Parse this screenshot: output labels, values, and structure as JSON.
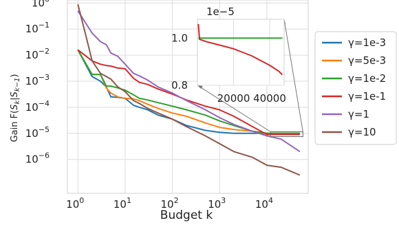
{
  "chart_data": [
    {
      "type": "line",
      "xlabel": "Budget k",
      "ylabel": "Gain F(S_k|S_{k-1})",
      "xscale": "log",
      "yscale": "log",
      "xlim": [
        0.6,
        75000
      ],
      "ylim": [
        5e-08,
        1.3
      ],
      "xticks": [
        {
          "value": 1,
          "base": "10",
          "exp": "0"
        },
        {
          "value": 10,
          "base": "10",
          "exp": "1"
        },
        {
          "value": 100,
          "base": "10",
          "exp": "2"
        },
        {
          "value": 1000,
          "base": "10",
          "exp": "3"
        },
        {
          "value": 10000,
          "base": "10",
          "exp": "4"
        }
      ],
      "yticks": [
        {
          "value": 1e-06,
          "base": "10",
          "exp": "−6"
        },
        {
          "value": 1e-05,
          "base": "10",
          "exp": "−5"
        },
        {
          "value": 0.0001,
          "base": "10",
          "exp": "−4"
        },
        {
          "value": 0.001,
          "base": "10",
          "exp": "−3"
        },
        {
          "value": 0.01,
          "base": "10",
          "exp": "−2"
        },
        {
          "value": 0.1,
          "base": "10",
          "exp": "−1"
        },
        {
          "value": 1,
          "base": "10",
          "exp": "0"
        }
      ],
      "grid": true,
      "legend": "outside-right",
      "series": [
        {
          "name": "γ=1e-3",
          "color": "#1f77b4",
          "x": [
            1,
            2,
            3,
            4,
            5,
            7,
            10,
            15,
            20,
            30,
            50,
            100,
            200,
            500,
            1000,
            2000,
            5000,
            10000,
            20000,
            50000
          ],
          "y": [
            0.016,
            0.0015,
            0.001,
            0.0006,
            0.00025,
            0.00024,
            0.00022,
            0.00012,
            0.0001,
            8e-05,
            5e-05,
            3.5e-05,
            2e-05,
            1.3e-05,
            1.1e-05,
            1e-05,
            1e-05,
            1e-05,
            1e-05,
            1e-05
          ]
        },
        {
          "name": "γ=5e-3",
          "color": "#ff7f0e",
          "x": [
            1,
            2,
            3,
            4,
            5,
            7,
            10,
            15,
            20,
            30,
            50,
            100,
            200,
            500,
            1000,
            2000,
            5000,
            10000,
            20000,
            50000
          ],
          "y": [
            0.016,
            0.0018,
            0.0018,
            0.00055,
            0.00035,
            0.00025,
            0.00022,
            0.00021,
            0.00018,
            0.00013,
            9e-05,
            6e-05,
            4.5e-05,
            2.5e-05,
            1.7e-05,
            1.4e-05,
            1.2e-05,
            1e-05,
            1e-05,
            1e-05
          ]
        },
        {
          "name": "γ=1e-2",
          "color": "#2ca02c",
          "x": [
            1,
            2,
            3,
            4,
            5,
            7,
            10,
            15,
            20,
            30,
            50,
            100,
            200,
            500,
            1000,
            2000,
            5000,
            10000,
            20000,
            50000
          ],
          "y": [
            0.016,
            0.0018,
            0.0018,
            0.00065,
            0.00065,
            0.00055,
            0.00045,
            0.0003,
            0.00022,
            0.00019,
            0.00015,
            0.00011,
            8e-05,
            5e-05,
            3e-05,
            2e-05,
            1.2e-05,
            1e-05,
            1e-05,
            1e-05
          ]
        },
        {
          "name": "γ=1e-1",
          "color": "#d62728",
          "x": [
            1,
            2,
            3,
            4,
            5,
            7,
            10,
            15,
            20,
            30,
            50,
            100,
            200,
            500,
            1000,
            2000,
            5000,
            10000,
            20000,
            50000
          ],
          "y": [
            0.016,
            0.006,
            0.0045,
            0.004,
            0.0038,
            0.0032,
            0.003,
            0.0013,
            0.0009,
            0.00075,
            0.0005,
            0.00032,
            0.00019,
            0.00011,
            8e-05,
            4.5e-05,
            1.8e-05,
            9e-06,
            9e-06,
            9e-06
          ]
        },
        {
          "name": "γ=1",
          "color": "#9467bd",
          "x": [
            1,
            2,
            3,
            4,
            5,
            7,
            10,
            15,
            20,
            30,
            50,
            100,
            200,
            500,
            1000,
            2000,
            5000,
            10000,
            20000,
            50000
          ],
          "y": [
            0.5,
            0.07,
            0.033,
            0.025,
            0.012,
            0.009,
            0.0045,
            0.002,
            0.0016,
            0.0011,
            0.0006,
            0.00035,
            0.00018,
            8e-05,
            4e-05,
            2.2e-05,
            1.2e-05,
            8e-06,
            6e-06,
            2e-06
          ]
        },
        {
          "name": "γ=10",
          "color": "#8c564b",
          "x": [
            1,
            1.5,
            2,
            3,
            4,
            5,
            7,
            10,
            15,
            20,
            30,
            50,
            100,
            200,
            500,
            1000,
            2000,
            5000,
            10000,
            20000,
            50000
          ],
          "y": [
            0.9,
            0.05,
            0.006,
            0.002,
            0.0015,
            0.0012,
            0.0006,
            0.0004,
            0.00018,
            0.00014,
            9e-05,
            6e-05,
            3.5e-05,
            1.8e-05,
            8e-06,
            4e-06,
            2e-06,
            1.2e-06,
            6e-07,
            5e-07,
            2.5e-07
          ]
        }
      ]
    },
    {
      "type": "line",
      "xscale": "linear",
      "yscale": "linear",
      "xlim": [
        0,
        48000
      ],
      "ylim": [
        0.8,
        1.08
      ],
      "offset_text": "1e−5",
      "xticks": [
        {
          "value": 20000,
          "label": "20000"
        },
        {
          "value": 40000,
          "label": "40000"
        }
      ],
      "yticks": [
        {
          "value": 0.8,
          "label": "0.8"
        },
        {
          "value": 1.0,
          "label": "1.0"
        }
      ],
      "grid": true,
      "series": [
        {
          "name": "γ=1e-2",
          "color": "#2ca02c",
          "x": [
            500,
            5000,
            10000,
            20000,
            30000,
            40000,
            47000
          ],
          "y": [
            1.0,
            1.0,
            1.0,
            1.0,
            1.0,
            1.0,
            1.0
          ]
        },
        {
          "name": "γ=1e-1",
          "color": "#d62728",
          "x": [
            500,
            1200,
            5000,
            10000,
            15000,
            20000,
            25000,
            30000,
            35000,
            40000,
            45000,
            47000
          ],
          "y": [
            1.06,
            0.995,
            0.985,
            0.975,
            0.965,
            0.955,
            0.94,
            0.925,
            0.905,
            0.885,
            0.86,
            0.845
          ]
        }
      ]
    }
  ]
}
